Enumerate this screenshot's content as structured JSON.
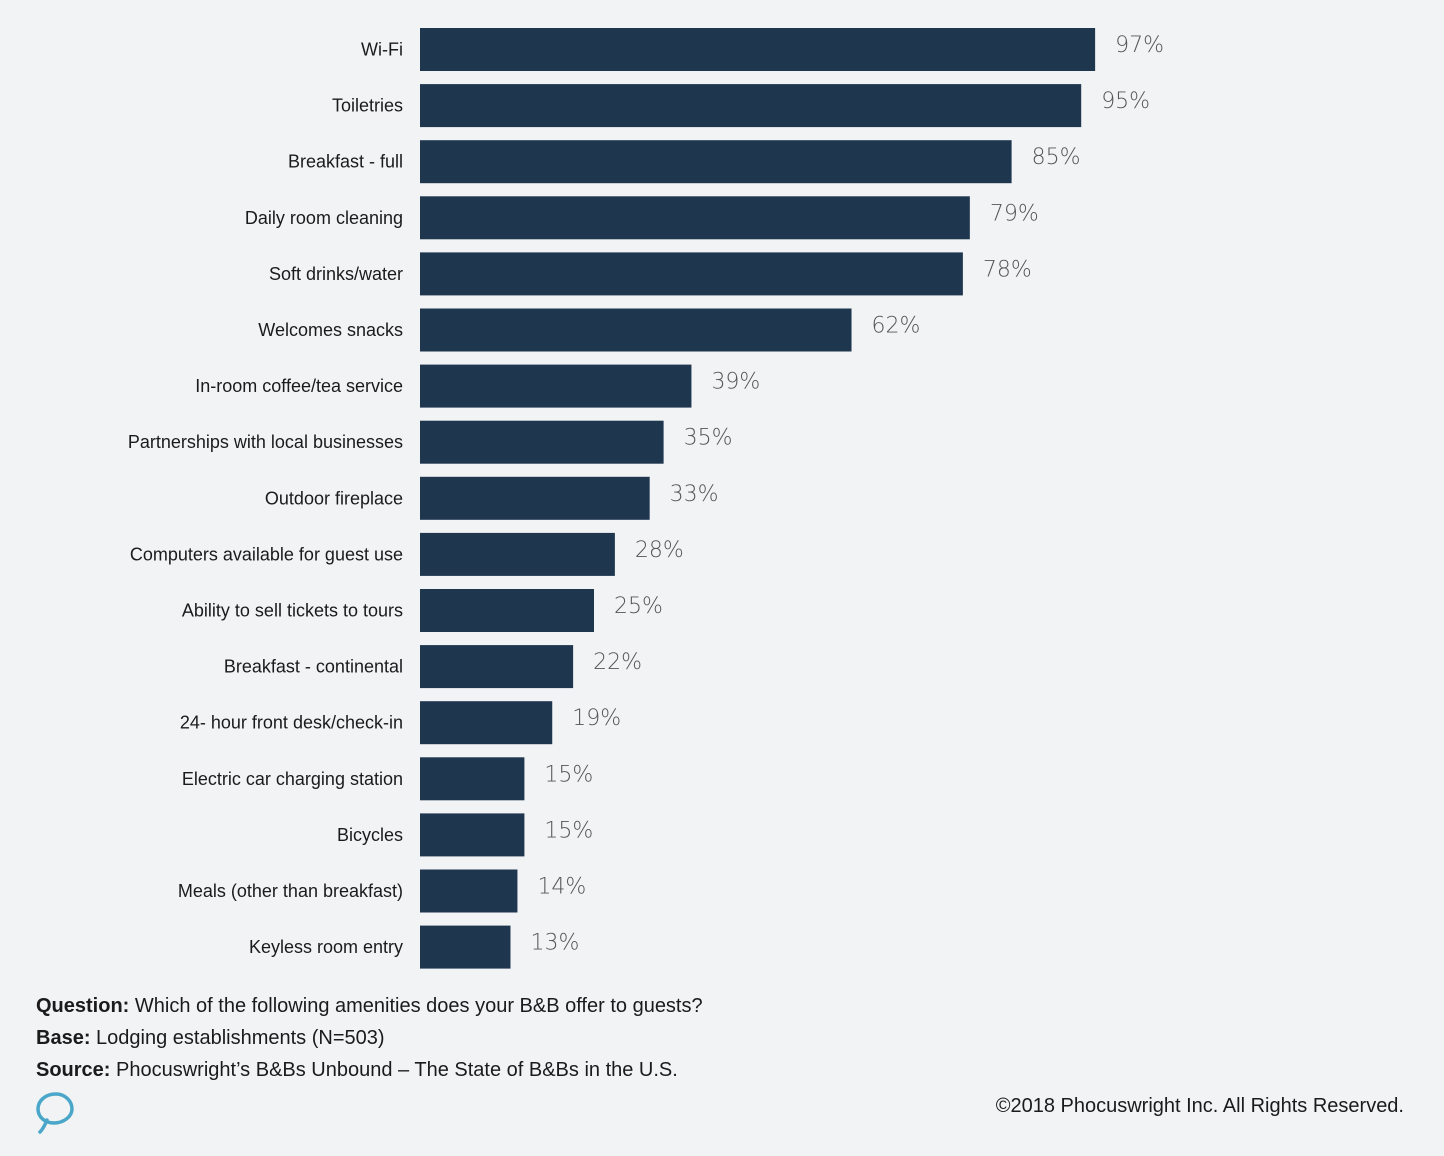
{
  "chart_data": {
    "type": "bar",
    "orientation": "horizontal",
    "categories": [
      "Wi-Fi",
      "Toiletries",
      "Breakfast - full",
      "Daily room cleaning",
      "Soft drinks/water",
      "Welcomes snacks",
      "In-room coffee/tea service",
      "Partnerships with local businesses",
      "Outdoor fireplace",
      "Computers available for guest use",
      "Ability to sell tickets to tours",
      "Breakfast - continental",
      "24- hour front desk/check-in",
      "Electric car charging station",
      "Bicycles",
      "Meals (other than breakfast)",
      "Keyless room entry"
    ],
    "values": [
      97,
      95,
      85,
      79,
      78,
      62,
      39,
      35,
      33,
      28,
      25,
      22,
      19,
      15,
      15,
      14,
      13
    ],
    "value_labels": [
      "97%",
      "95%",
      "85%",
      "79%",
      "78%",
      "62%",
      "39%",
      "35%",
      "33%",
      "28%",
      "25%",
      "22%",
      "19%",
      "15%",
      "15%",
      "14%",
      "13%"
    ],
    "unit": "%",
    "bar_color": "#1f364f",
    "grid": false,
    "legend": "none"
  },
  "notes": {
    "question_label": "Question:",
    "question_text": " Which of the following amenities does your B&B offer to guests?",
    "base_label": "Base:",
    "base_text": " Lodging establishments (N=503)",
    "source_label": "Source:",
    "source_text": " Phocuswright’s B&Bs Unbound – The State of B&Bs in the U.S."
  },
  "copyright": "©2018 Phocuswright Inc. All Rights Reserved.",
  "logo_icon": "phocuswright-logo-icon",
  "logo_color": "#4aa7c9"
}
